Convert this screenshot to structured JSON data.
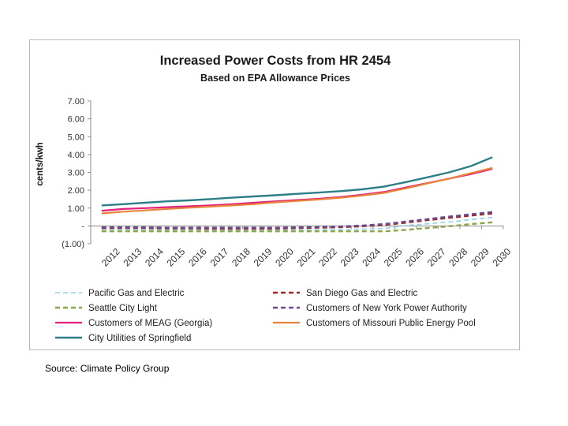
{
  "chart_data": {
    "type": "line",
    "title": "Increased Power Costs from HR 2454",
    "subtitle": "Based on EPA Allowance Prices",
    "ylabel": "cents/kwh",
    "xlabel": "",
    "ylim": [
      -1,
      7
    ],
    "y_ticks": [
      {
        "value": 7,
        "label": "7.00"
      },
      {
        "value": 6,
        "label": "6.00"
      },
      {
        "value": 5,
        "label": "5.00"
      },
      {
        "value": 4,
        "label": "4.00"
      },
      {
        "value": 3,
        "label": "3.00"
      },
      {
        "value": 2,
        "label": "2.00"
      },
      {
        "value": 1,
        "label": "1.00"
      },
      {
        "value": 0,
        "label": "-"
      },
      {
        "value": -1,
        "label": "(1.00)"
      }
    ],
    "x": [
      "2012",
      "2013",
      "2014",
      "2015",
      "2016",
      "2017",
      "2018",
      "2019",
      "2020",
      "2021",
      "2022",
      "2023",
      "2024",
      "2025",
      "2026",
      "2027",
      "2028",
      "2029",
      "2030"
    ],
    "grid": false,
    "legend_position": "bottom",
    "series": [
      {
        "name": "Pacific Gas and Electric",
        "color": "#8fd3e8",
        "dash": true,
        "width": 1.6,
        "values": [
          -0.2,
          -0.2,
          -0.22,
          -0.22,
          -0.22,
          -0.22,
          -0.22,
          -0.22,
          -0.22,
          -0.22,
          -0.22,
          -0.2,
          -0.18,
          -0.15,
          0.02,
          0.12,
          0.22,
          0.35,
          0.48
        ]
      },
      {
        "name": "San Diego Gas and Electric",
        "color": "#a0262a",
        "dash": true,
        "width": 2.4,
        "values": [
          -0.12,
          -0.12,
          -0.12,
          -0.14,
          -0.14,
          -0.15,
          -0.15,
          -0.15,
          -0.15,
          -0.12,
          -0.1,
          -0.07,
          -0.02,
          0.05,
          0.18,
          0.32,
          0.45,
          0.58,
          0.7
        ]
      },
      {
        "name": "Seattle City Light",
        "color": "#8aa646",
        "dash": true,
        "width": 2.4,
        "values": [
          -0.3,
          -0.3,
          -0.3,
          -0.3,
          -0.3,
          -0.3,
          -0.3,
          -0.3,
          -0.3,
          -0.3,
          -0.3,
          -0.3,
          -0.3,
          -0.3,
          -0.22,
          -0.12,
          -0.02,
          0.1,
          0.2
        ]
      },
      {
        "name": "Customers of New York Power Authority",
        "color": "#6a4b8c",
        "dash": true,
        "width": 2.4,
        "values": [
          -0.08,
          -0.08,
          -0.08,
          -0.1,
          -0.1,
          -0.1,
          -0.1,
          -0.1,
          -0.1,
          -0.08,
          -0.06,
          -0.03,
          0.02,
          0.1,
          0.24,
          0.38,
          0.52,
          0.65,
          0.78
        ]
      },
      {
        "name": "Customers of MEAG (Georgia)",
        "color": "#e0227c",
        "dash": false,
        "width": 2.2,
        "values": [
          0.85,
          0.95,
          1.0,
          1.05,
          1.1,
          1.15,
          1.22,
          1.3,
          1.38,
          1.45,
          1.52,
          1.62,
          1.75,
          1.9,
          2.15,
          2.4,
          2.65,
          2.9,
          3.2
        ]
      },
      {
        "name": "Customers of Missouri Public Energy Pool",
        "color": "#e8843a",
        "dash": false,
        "width": 2.2,
        "values": [
          0.7,
          0.8,
          0.87,
          0.95,
          1.02,
          1.08,
          1.15,
          1.22,
          1.32,
          1.4,
          1.48,
          1.58,
          1.7,
          1.85,
          2.1,
          2.38,
          2.65,
          2.95,
          3.25
        ]
      },
      {
        "name": "City Utilities of Springfield",
        "color": "#2c7f87",
        "dash": false,
        "width": 2.4,
        "values": [
          1.15,
          1.22,
          1.3,
          1.38,
          1.43,
          1.5,
          1.58,
          1.65,
          1.72,
          1.8,
          1.87,
          1.95,
          2.05,
          2.2,
          2.45,
          2.72,
          3.0,
          3.35,
          3.85
        ]
      }
    ]
  },
  "footer": {
    "source": "Source:  Climate Policy Group"
  }
}
